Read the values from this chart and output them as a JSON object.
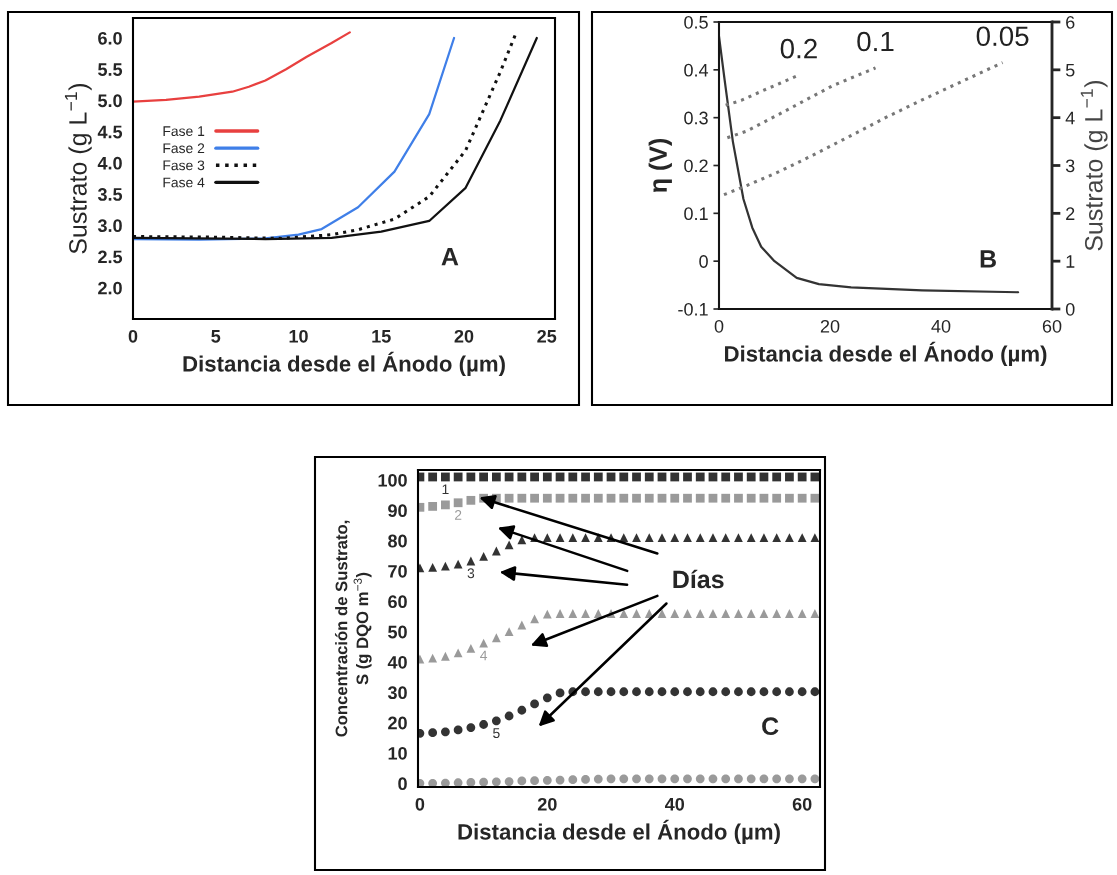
{
  "chart_data": [
    {
      "type": "line",
      "xlabel": "Distancia desde el Ánodo (µm)",
      "ylabel": "Sustrato (g L$^{−1}$)",
      "xlim": [
        0,
        25.5
      ],
      "ylim": [
        1.5,
        6.32
      ],
      "xticks": [
        0,
        5,
        10,
        15,
        20,
        25
      ],
      "yticks": [
        {
          "value": 2,
          "label": "2.0"
        },
        2.5,
        {
          "value": 3,
          "label": "3.0"
        },
        3.5,
        {
          "value": 4,
          "label": "4.0"
        },
        4.5,
        {
          "value": 5,
          "label": "5.0"
        },
        5.5,
        {
          "value": 6,
          "label": "6.0"
        }
      ],
      "legend": "left",
      "annotations": [
        "A"
      ],
      "series": [
        {
          "name": "Fase 1",
          "color": "#e8403f",
          "x": [
            0,
            2,
            4,
            6,
            7,
            8,
            9.25,
            10.5,
            12,
            13.1
          ],
          "values": [
            4.98,
            5.01,
            5.06,
            5.14,
            5.22,
            5.32,
            5.5,
            5.7,
            5.92,
            6.09
          ]
        },
        {
          "name": "Fase 2",
          "color": "#3f7fe8",
          "x": [
            0,
            4,
            8,
            10,
            11.4,
            13.6,
            15.8,
            17.9,
            19.4
          ],
          "values": [
            2.78,
            2.77,
            2.79,
            2.85,
            2.94,
            3.29,
            3.86,
            4.78,
            6.0
          ]
        },
        {
          "name": "Fase 3",
          "color": "#111111",
          "line_style": "dotted",
          "x": [
            0,
            5,
            9,
            12,
            13.6,
            15.8,
            17.9,
            20.1,
            22.2,
            23.1
          ],
          "values": [
            2.82,
            2.81,
            2.79,
            2.85,
            2.93,
            3.1,
            3.46,
            4.2,
            5.46,
            6.05
          ]
        },
        {
          "name": "Fase 4",
          "color": "#111111",
          "x": [
            0,
            8,
            12,
            15,
            17.9,
            20.1,
            22.2,
            24.4
          ],
          "values": [
            2.8,
            2.78,
            2.8,
            2.9,
            3.07,
            3.6,
            4.68,
            6.0
          ]
        }
      ]
    },
    {
      "type": "line",
      "xlabel": "Distancia desde el Ánodo (µm)",
      "ylabel": "η (V)",
      "y2label": "Sustrato (g L$^{−1}$)",
      "xlim": [
        0,
        60
      ],
      "ylim": [
        -0.1,
        0.5
      ],
      "y2lim": [
        0,
        6
      ],
      "xticks": [
        0,
        20,
        40,
        60
      ],
      "yticks": [
        -0.1,
        0,
        0.1,
        0.2,
        0.3,
        0.4,
        0.5
      ],
      "y2ticks": [
        0,
        1,
        2,
        3,
        4,
        5,
        6
      ],
      "annotations": [
        "B"
      ],
      "series": [
        {
          "color": "#333333",
          "x": [
            0,
            1,
            2.5,
            4.4,
            6,
            7.6,
            10,
            14,
            18,
            23.8,
            36.6,
            53.9
          ],
          "values": [
            0.47,
            0.38,
            0.25,
            0.13,
            0.07,
            0.03,
            0,
            -0.035,
            -0.048,
            -0.055,
            -0.061,
            -0.065
          ]
        },
        {
          "name": "0.2",
          "color": "#777777",
          "axis": "y2",
          "line_style": "dotted",
          "x": [
            1.2,
            4,
            7.6,
            11,
            14.4
          ],
          "values": [
            4.26,
            4.36,
            4.55,
            4.72,
            4.89
          ]
        },
        {
          "name": "0.1",
          "color": "#777777",
          "axis": "y2",
          "line_style": "dotted",
          "x": [
            1.5,
            5,
            10.8,
            15,
            20.5,
            28.2
          ],
          "values": [
            3.58,
            3.72,
            4.07,
            4.33,
            4.67,
            5.04
          ]
        },
        {
          "name": "0.05",
          "color": "#777777",
          "axis": "y2",
          "line_style": "dotted",
          "x": [
            0.9,
            5,
            10.8,
            17,
            23.7,
            30,
            36.6,
            44,
            51.1
          ],
          "values": [
            2.39,
            2.58,
            2.87,
            3.22,
            3.62,
            4.0,
            4.37,
            4.77,
            5.15
          ]
        }
      ]
    },
    {
      "type": "scatter",
      "xlabel": "Distancia desde el Ánodo (µm)",
      "ylabel": "Concentración de Sustrato,\nS (g DQO m$^{−3}$)",
      "xlim": [
        -0.3,
        62.8
      ],
      "ylim": [
        -1.2,
        103.3
      ],
      "xticks": [
        0,
        20,
        40,
        60
      ],
      "yticks": [
        0,
        10,
        20,
        30,
        40,
        50,
        60,
        70,
        80,
        90,
        100
      ],
      "annotations": [
        "Días",
        "C"
      ],
      "x": [
        0,
        2,
        4,
        6,
        8,
        10,
        12,
        14,
        16,
        18,
        20,
        22,
        24,
        26,
        28,
        30,
        32,
        34,
        36,
        38,
        40,
        42,
        44,
        46,
        48,
        50,
        52,
        54,
        56,
        58,
        60,
        62
      ],
      "series": [
        {
          "name": "1",
          "color": "#333333",
          "marker": "square",
          "values": [
            101,
            101,
            101,
            101,
            101,
            101,
            101,
            101,
            101,
            101,
            101,
            101,
            101,
            101,
            101,
            101,
            101,
            101,
            101,
            101,
            101,
            101,
            101,
            101,
            101,
            101,
            101,
            101,
            101,
            101,
            101,
            101
          ]
        },
        {
          "name": "2",
          "color": "#9a9a9a",
          "marker": "square",
          "values": [
            91,
            91.3,
            91.8,
            92.5,
            93.3,
            94,
            94,
            94,
            94,
            94,
            94,
            94,
            94,
            94,
            94,
            94,
            94,
            94,
            94,
            94,
            94,
            94,
            94,
            94,
            94,
            94,
            94,
            94,
            94,
            94,
            94,
            94
          ]
        },
        {
          "name": "3",
          "color": "#333333",
          "marker": "triangle",
          "values": [
            71,
            71.2,
            71.6,
            72.3,
            73.3,
            74.8,
            76.6,
            78.6,
            80.3,
            81,
            81,
            81,
            81,
            81,
            81,
            81,
            81,
            81,
            81,
            81,
            81,
            81,
            81,
            81,
            81,
            81,
            81,
            81,
            81,
            81,
            81,
            81
          ]
        },
        {
          "name": "4",
          "color": "#9a9a9a",
          "marker": "triangle",
          "values": [
            41,
            41.3,
            41.9,
            43,
            44.5,
            46.2,
            48,
            50,
            52.2,
            54.2,
            55.8,
            56,
            56,
            56,
            56,
            56,
            56,
            56,
            56,
            56,
            56,
            56,
            56,
            56,
            56,
            56,
            56,
            56,
            56,
            56,
            56,
            56
          ]
        },
        {
          "name": "5",
          "color": "#333333",
          "marker": "circle",
          "values": [
            16.5,
            16.7,
            17,
            17.6,
            18.4,
            19.4,
            20.6,
            22.2,
            24.1,
            26.2,
            28.2,
            29.8,
            30.2,
            30.2,
            30.2,
            30.2,
            30.2,
            30.2,
            30.2,
            30.2,
            30.2,
            30.2,
            30.2,
            30.2,
            30.2,
            30.2,
            30.2,
            30.2,
            30.2,
            30.2,
            30.2,
            30.2
          ]
        },
        {
          "color": "#9a9a9a",
          "marker": "circle",
          "values": [
            0,
            0,
            0.1,
            0.2,
            0.3,
            0.4,
            0.5,
            0.6,
            0.8,
            0.9,
            1,
            1.1,
            1.2,
            1.3,
            1.4,
            1.5,
            1.5,
            1.5,
            1.5,
            1.5,
            1.5,
            1.5,
            1.5,
            1.5,
            1.5,
            1.5,
            1.5,
            1.5,
            1.5,
            1.5,
            1.5,
            1.5
          ]
        }
      ]
    }
  ]
}
